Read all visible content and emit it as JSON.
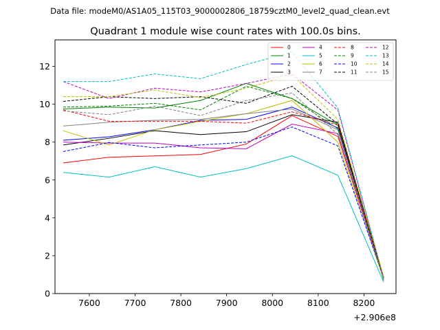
{
  "chart_data": {
    "type": "line",
    "suptitle": "Data file: modeM0/AS1A05_115T03_9000002806_18759cztM0_level2_quad_clean.evt",
    "title": "Quadrant 1 module wise count rates with 100.0s bins.",
    "xlabel": "",
    "ylabel": "",
    "x_offset_label": "+2.906e8",
    "xlim": [
      7525,
      8270
    ],
    "ylim": [
      0,
      13.4
    ],
    "xticks": [
      7600,
      7700,
      7800,
      7900,
      8000,
      8100,
      8200
    ],
    "yticks": [
      0,
      2,
      4,
      6,
      8,
      10,
      12
    ],
    "legend_position": "top-right",
    "x": [
      7543,
      7643,
      7743,
      7843,
      7943,
      8043,
      8143,
      8243
    ],
    "series": [
      {
        "name": "0",
        "color": "#ff0000",
        "dash": "solid",
        "values": [
          6.9,
          7.2,
          7.27,
          7.35,
          7.9,
          9.4,
          8.3,
          0.8
        ]
      },
      {
        "name": "1",
        "color": "#008000",
        "dash": "solid",
        "values": [
          9.75,
          9.85,
          9.8,
          10.2,
          11.1,
          10.3,
          8.9,
          0.7
        ]
      },
      {
        "name": "2",
        "color": "#0000ff",
        "dash": "solid",
        "values": [
          8.1,
          8.28,
          8.65,
          9.15,
          9.2,
          9.85,
          8.75,
          0.85
        ]
      },
      {
        "name": "3",
        "color": "#000000",
        "dash": "solid",
        "values": [
          7.85,
          8.2,
          8.6,
          8.4,
          8.55,
          9.45,
          9.05,
          0.8
        ]
      },
      {
        "name": "4",
        "color": "#bf00bf",
        "dash": "solid",
        "values": [
          8.0,
          7.95,
          7.95,
          7.7,
          7.65,
          8.95,
          8.45,
          0.85
        ]
      },
      {
        "name": "5",
        "color": "#00bfbf",
        "dash": "solid",
        "values": [
          6.4,
          6.15,
          6.7,
          6.15,
          6.6,
          7.28,
          6.25,
          0.6
        ]
      },
      {
        "name": "6",
        "color": "#bfbf00",
        "dash": "solid",
        "values": [
          8.6,
          7.85,
          8.65,
          9.1,
          9.5,
          10.2,
          8.0,
          0.75
        ]
      },
      {
        "name": "7",
        "color": "#808080",
        "dash": "solid",
        "values": [
          8.85,
          9.05,
          9.15,
          9.2,
          9.5,
          9.75,
          8.65,
          0.9
        ]
      },
      {
        "name": "8",
        "color": "#ff0000",
        "dash": "dashed",
        "values": [
          9.7,
          9.1,
          9.1,
          9.1,
          9.0,
          9.6,
          8.9,
          0.85
        ]
      },
      {
        "name": "9",
        "color": "#008000",
        "dash": "dashed",
        "values": [
          9.85,
          9.9,
          10.05,
          9.7,
          10.95,
          10.3,
          8.7,
          0.8
        ]
      },
      {
        "name": "10",
        "color": "#0000ff",
        "dash": "dashed",
        "values": [
          7.5,
          7.98,
          7.7,
          7.85,
          8.0,
          8.8,
          7.8,
          0.8
        ]
      },
      {
        "name": "11",
        "color": "#000000",
        "dash": "dashed",
        "values": [
          10.15,
          10.4,
          10.3,
          10.4,
          10.05,
          10.95,
          8.95,
          0.85
        ]
      },
      {
        "name": "12",
        "color": "#bf00bf",
        "dash": "dashed",
        "values": [
          11.2,
          10.3,
          10.85,
          10.65,
          11.1,
          11.6,
          9.7,
          0.8
        ]
      },
      {
        "name": "13",
        "color": "#00bfbf",
        "dash": "dashed",
        "values": [
          11.2,
          11.2,
          11.6,
          11.35,
          12.1,
          12.75,
          9.8,
          0.85
        ]
      },
      {
        "name": "14",
        "color": "#bfbf00",
        "dash": "dashed",
        "values": [
          10.4,
          10.4,
          10.75,
          10.35,
          10.85,
          11.55,
          9.2,
          0.9
        ]
      },
      {
        "name": "15",
        "color": "#808080",
        "dash": "dashed",
        "values": [
          9.65,
          9.45,
          9.9,
          9.4,
          10.2,
          10.6,
          8.4,
          0.75
        ]
      }
    ]
  }
}
